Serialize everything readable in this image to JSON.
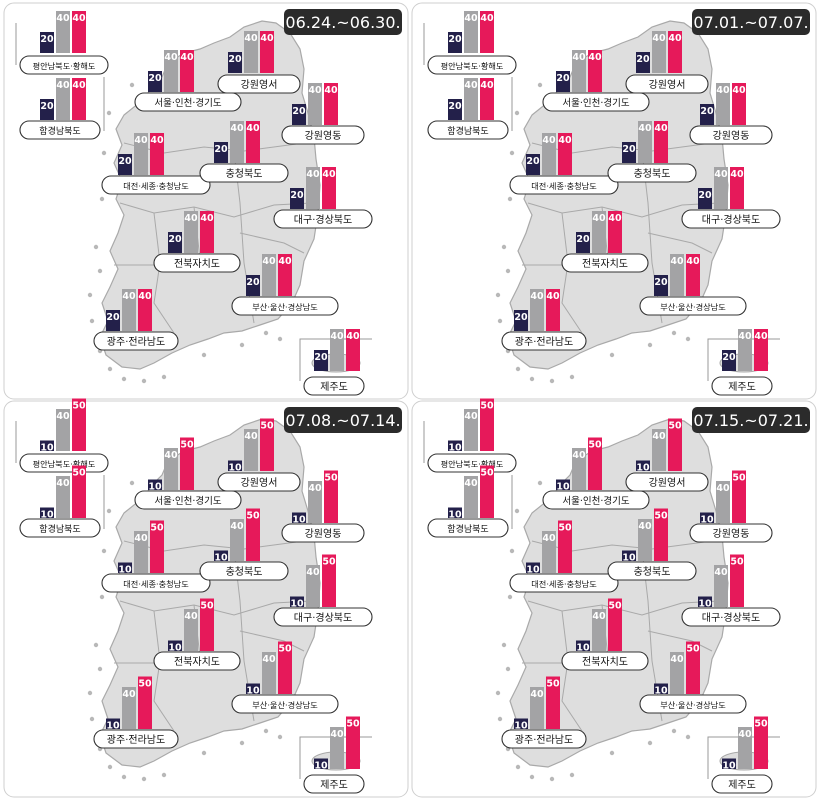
{
  "colors": {
    "dark": "#23204a",
    "gray": "#a3a3a5",
    "pink": "#e6195a",
    "map": "#dedede",
    "map_border": "#a9a9a9",
    "badge_bg": "#2b2b2b",
    "badge_text": "#ffffff"
  },
  "chart_data": [
    {
      "type": "bar",
      "title": "06.24.~06.30.",
      "series_order": [
        "dark",
        "gray",
        "pink"
      ],
      "regions": [
        {
          "name": "평안남북도·황해도",
          "values": [
            20,
            40,
            40
          ]
        },
        {
          "name": "함경남북도",
          "values": [
            20,
            40,
            40
          ]
        },
        {
          "name": "서울·인천·경기도",
          "values": [
            20,
            40,
            40
          ]
        },
        {
          "name": "강원영서",
          "values": [
            20,
            40,
            40
          ]
        },
        {
          "name": "강원영동",
          "values": [
            20,
            40,
            40
          ]
        },
        {
          "name": "대전·세종·충청남도",
          "values": [
            20,
            40,
            40
          ]
        },
        {
          "name": "충청북도",
          "values": [
            20,
            40,
            40
          ]
        },
        {
          "name": "대구·경상북도",
          "values": [
            20,
            40,
            40
          ]
        },
        {
          "name": "전북자치도",
          "values": [
            20,
            40,
            40
          ]
        },
        {
          "name": "부산·울산·경상남도",
          "values": [
            20,
            40,
            40
          ]
        },
        {
          "name": "광주·전라남도",
          "values": [
            20,
            40,
            40
          ]
        },
        {
          "name": "제주도",
          "values": [
            20,
            40,
            40
          ]
        }
      ]
    },
    {
      "type": "bar",
      "title": "07.01.~07.07.",
      "series_order": [
        "dark",
        "gray",
        "pink"
      ],
      "regions": [
        {
          "name": "평안남북도·황해도",
          "values": [
            20,
            40,
            40
          ]
        },
        {
          "name": "함경남북도",
          "values": [
            20,
            40,
            40
          ]
        },
        {
          "name": "서울·인천·경기도",
          "values": [
            20,
            40,
            40
          ]
        },
        {
          "name": "강원영서",
          "values": [
            20,
            40,
            40
          ]
        },
        {
          "name": "강원영동",
          "values": [
            20,
            40,
            40
          ]
        },
        {
          "name": "대전·세종·충청남도",
          "values": [
            20,
            40,
            40
          ]
        },
        {
          "name": "충청북도",
          "values": [
            20,
            40,
            40
          ]
        },
        {
          "name": "대구·경상북도",
          "values": [
            20,
            40,
            40
          ]
        },
        {
          "name": "전북자치도",
          "values": [
            20,
            40,
            40
          ]
        },
        {
          "name": "부산·울산·경상남도",
          "values": [
            20,
            40,
            40
          ]
        },
        {
          "name": "광주·전라남도",
          "values": [
            20,
            40,
            40
          ]
        },
        {
          "name": "제주도",
          "values": [
            20,
            40,
            40
          ]
        }
      ]
    },
    {
      "type": "bar",
      "title": "07.08.~07.14.",
      "series_order": [
        "dark",
        "gray",
        "pink"
      ],
      "regions": [
        {
          "name": "평안남북도·황해도",
          "values": [
            10,
            40,
            50
          ]
        },
        {
          "name": "함경남북도",
          "values": [
            10,
            40,
            50
          ]
        },
        {
          "name": "서울·인천·경기도",
          "values": [
            10,
            40,
            50
          ]
        },
        {
          "name": "강원영서",
          "values": [
            10,
            40,
            50
          ]
        },
        {
          "name": "강원영동",
          "values": [
            10,
            40,
            50
          ]
        },
        {
          "name": "대전·세종·충청남도",
          "values": [
            10,
            40,
            50
          ]
        },
        {
          "name": "충청북도",
          "values": [
            10,
            40,
            50
          ]
        },
        {
          "name": "대구·경상북도",
          "values": [
            10,
            40,
            50
          ]
        },
        {
          "name": "전북자치도",
          "values": [
            10,
            40,
            50
          ]
        },
        {
          "name": "부산·울산·경상남도",
          "values": [
            10,
            40,
            50
          ]
        },
        {
          "name": "광주·전라남도",
          "values": [
            10,
            40,
            50
          ]
        },
        {
          "name": "제주도",
          "values": [
            10,
            40,
            50
          ]
        }
      ]
    },
    {
      "type": "bar",
      "title": "07.15.~07.21.",
      "series_order": [
        "dark",
        "gray",
        "pink"
      ],
      "regions": [
        {
          "name": "평안남북도·황해도",
          "values": [
            10,
            40,
            50
          ]
        },
        {
          "name": "함경남북도",
          "values": [
            10,
            40,
            50
          ]
        },
        {
          "name": "서울·인천·경기도",
          "values": [
            10,
            40,
            50
          ]
        },
        {
          "name": "강원영서",
          "values": [
            10,
            40,
            50
          ]
        },
        {
          "name": "강원영동",
          "values": [
            10,
            40,
            50
          ]
        },
        {
          "name": "대전·세종·충청남도",
          "values": [
            10,
            40,
            50
          ]
        },
        {
          "name": "충청북도",
          "values": [
            10,
            40,
            50
          ]
        },
        {
          "name": "대구·경상북도",
          "values": [
            10,
            40,
            50
          ]
        },
        {
          "name": "전북자치도",
          "values": [
            10,
            40,
            50
          ]
        },
        {
          "name": "부산·울산·경상남도",
          "values": [
            10,
            40,
            50
          ]
        },
        {
          "name": "광주·전라남도",
          "values": [
            10,
            40,
            50
          ]
        },
        {
          "name": "제주도",
          "values": [
            10,
            40,
            50
          ]
        }
      ]
    }
  ]
}
